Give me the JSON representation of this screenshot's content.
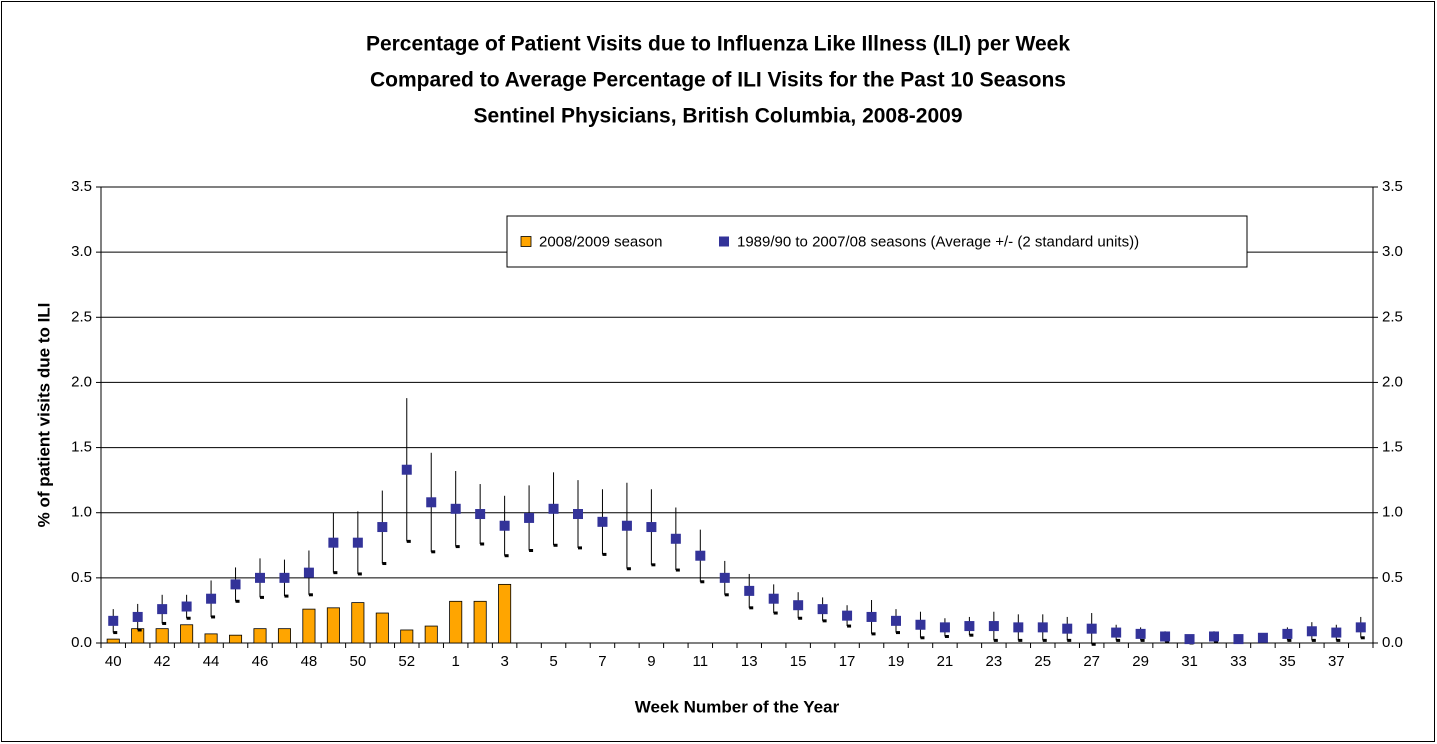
{
  "chart_data": {
    "type": "bar",
    "title": [
      "Percentage of Patient Visits due to Influenza Like Illness (ILI) per Week",
      "Compared to Average Percentage of ILI Visits for the Past 10 Seasons",
      "Sentinel Physicians, British Columbia, 2008-2009"
    ],
    "x_label": "Week Number of the Year",
    "y_label": "% of patient visits due to ILI",
    "categories": [
      "40",
      null,
      "42",
      null,
      "44",
      null,
      "46",
      null,
      "48",
      null,
      "50",
      null,
      "52",
      null,
      "1",
      null,
      "3",
      null,
      "5",
      null,
      "7",
      null,
      "9",
      null,
      "11",
      null,
      "13",
      null,
      "15",
      null,
      "17",
      null,
      "19",
      null,
      "21",
      null,
      "23",
      null,
      "25",
      null,
      "27",
      null,
      "29",
      null,
      "31",
      null,
      "33",
      null,
      "35",
      null,
      "37",
      null
    ],
    "ylim": [
      0,
      3.5
    ],
    "yticks": [
      {
        "value": 0,
        "label": "0.0"
      },
      0.5,
      {
        "value": 1,
        "label": "1.0"
      },
      1.5,
      {
        "value": 2,
        "label": "2.0"
      },
      2.5,
      {
        "value": 3,
        "label": "3.0"
      },
      3.5
    ],
    "y2lim": [
      0,
      3.5
    ],
    "y2ticks": [
      {
        "value": 0,
        "label": "0.0"
      },
      0.5,
      {
        "value": 1,
        "label": "1.0"
      },
      1.5,
      {
        "value": 2,
        "label": "2.0"
      },
      2.5,
      {
        "value": 3,
        "label": "3.0"
      },
      3.5
    ],
    "grid": true,
    "legend": "top",
    "series": [
      {
        "name": "2008/2009 season",
        "type": "bar",
        "color": "#FFA500",
        "values": [
          0.03,
          0.11,
          0.11,
          0.14,
          0.07,
          0.06,
          0.11,
          0.11,
          0.26,
          0.27,
          0.31,
          0.23,
          0.1,
          0.13,
          0.32,
          0.32,
          0.45,
          null,
          null,
          null,
          null,
          null,
          null,
          null,
          null,
          null,
          null,
          null,
          null,
          null,
          null,
          null,
          null,
          null,
          null,
          null,
          null,
          null,
          null,
          null,
          null,
          null,
          null,
          null,
          null,
          null,
          null,
          null,
          null,
          null,
          null,
          null
        ]
      },
      {
        "name": "1989/90 to 2007/08 seasons (Average +/- (2 standard units))",
        "type": "errorbar",
        "color": "#333399",
        "values": [
          0.17,
          0.2,
          0.26,
          0.28,
          0.34,
          0.45,
          0.5,
          0.5,
          0.54,
          0.77,
          0.77,
          0.89,
          1.33,
          1.08,
          1.03,
          0.99,
          0.9,
          0.96,
          1.03,
          0.99,
          0.93,
          0.9,
          0.89,
          0.8,
          0.67,
          0.5,
          0.4,
          0.34,
          0.29,
          0.26,
          0.21,
          0.2,
          0.17,
          0.14,
          0.12,
          0.13,
          0.13,
          0.12,
          0.12,
          0.11,
          0.11,
          0.08,
          0.07,
          0.05,
          0.03,
          0.05,
          0.03,
          0.04,
          0.07,
          0.09,
          0.08,
          0.12
        ],
        "errors": [
          0.09,
          0.1,
          0.11,
          0.09,
          0.14,
          0.13,
          0.15,
          0.14,
          0.17,
          0.23,
          0.24,
          0.28,
          0.55,
          0.38,
          0.29,
          0.23,
          0.23,
          0.25,
          0.28,
          0.26,
          0.25,
          0.33,
          0.29,
          0.24,
          0.2,
          0.13,
          0.13,
          0.11,
          0.1,
          0.09,
          0.08,
          0.13,
          0.09,
          0.1,
          0.07,
          0.07,
          0.11,
          0.1,
          0.1,
          0.09,
          0.12,
          0.06,
          0.05,
          0.04,
          0.03,
          0.04,
          0.02,
          0.03,
          0.05,
          0.07,
          0.06,
          0.08
        ]
      }
    ]
  }
}
